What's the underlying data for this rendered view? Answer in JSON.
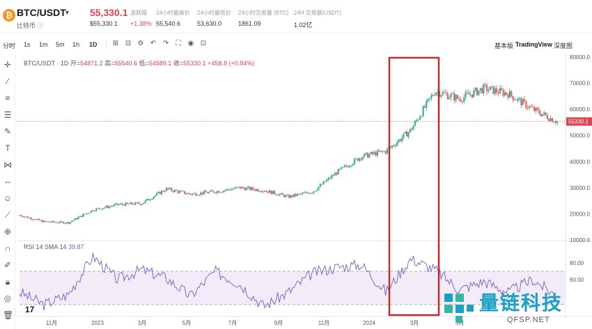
{
  "header": {
    "coin_symbol": "₿",
    "pair": "BTC/USDT",
    "coin_name": "比特币",
    "info_glyph": "ⓘ",
    "price": "55,330.1",
    "price_sub": "$55,330.1",
    "stats": [
      {
        "label": "涨跌幅",
        "value": "+1.38%",
        "red": true
      },
      {
        "label": "24小时最高价",
        "value": "55,540.6"
      },
      {
        "label": "24小时最低价",
        "value": "53,630.0"
      },
      {
        "label": "24小时交易量 (BTC)",
        "value": "1861.09"
      },
      {
        "label": "24H 交易额(USDT)",
        "value": "1.02亿"
      }
    ]
  },
  "toolbar": {
    "intervals": [
      "分时",
      "1s",
      "1m",
      "5m",
      "1h",
      "1D"
    ],
    "active_interval": "1D",
    "view_tabs": [
      "基本版",
      "TradingView",
      "深度图"
    ],
    "active_view": "TradingView"
  },
  "legend": {
    "main": "BTC/USDT · 1D",
    "open_label": "开=",
    "open": "54871.2",
    "high_label": "高=",
    "high": "55540.6",
    "low_label": "低=",
    "low": "54589.1",
    "close_label": "收=",
    "close": "55330.1",
    "change": "+458.8 (+0.84%)",
    "rsi_label": "RSI 14 SMA 14",
    "rsi_value": "39.87"
  },
  "brand": {
    "logo": "17",
    "watermark_name": "量链科技",
    "watermark_url": "QFSP.NET"
  },
  "colors": {
    "up": "#26a69a",
    "down": "#ef5350",
    "rsi": "#7e57c2",
    "highlight": "#c62828",
    "price_tag": "#e0424f"
  },
  "chart_data": {
    "type": "candlestick",
    "interval": "1D",
    "price_axis": {
      "ticks": [
        "80000.0",
        "70000.0",
        "60000.0",
        "50000.0",
        "40000.0",
        "30000.0",
        "20000.0",
        "10000.0"
      ],
      "min": 10000,
      "max": 80000
    },
    "current_price_label": "55330.1",
    "time_axis": [
      "11月",
      "2023",
      "3月",
      "5月",
      "7月",
      "9月",
      "11月",
      "2024",
      "3月",
      "5月"
    ],
    "price_path": [
      {
        "t": "2022-10",
        "v": 19500
      },
      {
        "t": "2022-11",
        "v": 17000
      },
      {
        "t": "2022-12",
        "v": 16600
      },
      {
        "t": "2023-01",
        "v": 21500
      },
      {
        "t": "2023-02",
        "v": 23500
      },
      {
        "t": "2023-03",
        "v": 24000
      },
      {
        "t": "2023-04",
        "v": 29500
      },
      {
        "t": "2023-05",
        "v": 27500
      },
      {
        "t": "2023-06",
        "v": 28500
      },
      {
        "t": "2023-07",
        "v": 30000
      },
      {
        "t": "2023-08",
        "v": 29000
      },
      {
        "t": "2023-09",
        "v": 26500
      },
      {
        "t": "2023-10",
        "v": 28500
      },
      {
        "t": "2023-11",
        "v": 36000
      },
      {
        "t": "2023-12",
        "v": 42000
      },
      {
        "t": "2024-01",
        "v": 44000
      },
      {
        "t": "2024-02",
        "v": 52000
      },
      {
        "t": "2024-03",
        "v": 67000
      },
      {
        "t": "2024-04",
        "v": 64000
      },
      {
        "t": "2024-05",
        "v": 68000
      },
      {
        "t": "2024-06",
        "v": 66000
      },
      {
        "t": "2024-07",
        "v": 60000
      },
      {
        "t": "2024-08",
        "v": 55330
      }
    ],
    "rsi_axis": {
      "ticks": [
        "80.00",
        "60.00"
      ]
    },
    "rsi_bands": [
      70,
      30
    ],
    "rsi_path": [
      {
        "t": "2022-10",
        "v": 45
      },
      {
        "t": "2022-11",
        "v": 30
      },
      {
        "t": "2022-12",
        "v": 42
      },
      {
        "t": "2023-01",
        "v": 88
      },
      {
        "t": "2023-02",
        "v": 60
      },
      {
        "t": "2023-03",
        "v": 72
      },
      {
        "t": "2023-04",
        "v": 62
      },
      {
        "t": "2023-05",
        "v": 40
      },
      {
        "t": "2023-06",
        "v": 70
      },
      {
        "t": "2023-07",
        "v": 55
      },
      {
        "t": "2023-08",
        "v": 28
      },
      {
        "t": "2023-09",
        "v": 45
      },
      {
        "t": "2023-10",
        "v": 68
      },
      {
        "t": "2023-11",
        "v": 75
      },
      {
        "t": "2023-12",
        "v": 78
      },
      {
        "t": "2024-01",
        "v": 45
      },
      {
        "t": "2024-02",
        "v": 85
      },
      {
        "t": "2024-03",
        "v": 72
      },
      {
        "t": "2024-04",
        "v": 48
      },
      {
        "t": "2024-05",
        "v": 58
      },
      {
        "t": "2024-06",
        "v": 45
      },
      {
        "t": "2024-07",
        "v": 60
      },
      {
        "t": "2024-08",
        "v": 40
      }
    ]
  }
}
